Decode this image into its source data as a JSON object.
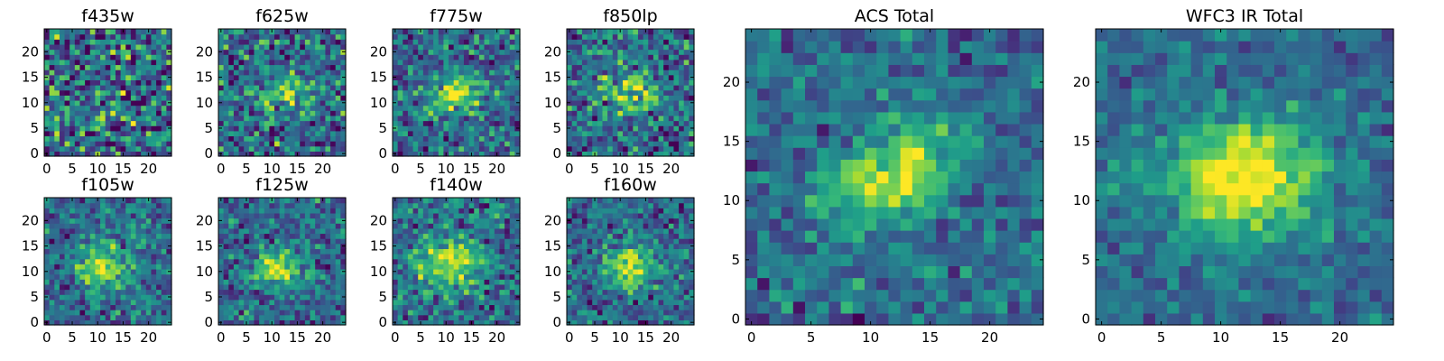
{
  "chart_data": [
    {
      "type": "heatmap",
      "title": "f435w",
      "colormap": "viridis",
      "grid": false,
      "xlim": [
        0,
        25
      ],
      "ylim": [
        0,
        25
      ],
      "x_ticks": [
        0,
        5,
        10,
        15,
        20
      ],
      "y_ticks": [
        0,
        5,
        10,
        15,
        20
      ],
      "values_summary": "pixel noise, no clear source"
    },
    {
      "type": "heatmap",
      "title": "f625w",
      "colormap": "viridis",
      "grid": false,
      "xlim": [
        0,
        25
      ],
      "ylim": [
        0,
        25
      ],
      "x_ticks": [
        0,
        5,
        10,
        15,
        20
      ],
      "y_ticks": [
        0,
        5,
        10,
        15,
        20
      ],
      "values_summary": "faint elongated source near center"
    },
    {
      "type": "heatmap",
      "title": "f775w",
      "colormap": "viridis",
      "grid": false,
      "xlim": [
        0,
        25
      ],
      "ylim": [
        0,
        25
      ],
      "x_ticks": [
        0,
        5,
        10,
        15,
        20
      ],
      "y_ticks": [
        0,
        5,
        10,
        15,
        20
      ],
      "values_summary": "source near center"
    },
    {
      "type": "heatmap",
      "title": "f850lp",
      "colormap": "viridis",
      "grid": false,
      "xlim": [
        0,
        25
      ],
      "ylim": [
        0,
        25
      ],
      "x_ticks": [
        0,
        5,
        10,
        15,
        20
      ],
      "y_ticks": [
        0,
        5,
        10,
        15,
        20
      ],
      "values_summary": "source near center"
    },
    {
      "type": "heatmap",
      "title": "f105w",
      "colormap": "viridis",
      "grid": false,
      "xlim": [
        0,
        25
      ],
      "ylim": [
        0,
        25
      ],
      "x_ticks": [
        0,
        5,
        10,
        15,
        20
      ],
      "y_ticks": [
        0,
        5,
        10,
        15,
        20
      ],
      "values_summary": "bright source near center"
    },
    {
      "type": "heatmap",
      "title": "f125w",
      "colormap": "viridis",
      "grid": false,
      "xlim": [
        0,
        25
      ],
      "ylim": [
        0,
        25
      ],
      "x_ticks": [
        0,
        5,
        10,
        15,
        20
      ],
      "y_ticks": [
        0,
        5,
        10,
        15,
        20
      ],
      "values_summary": "compact source near center"
    },
    {
      "type": "heatmap",
      "title": "f140w",
      "colormap": "viridis",
      "grid": false,
      "xlim": [
        0,
        25
      ],
      "ylim": [
        0,
        25
      ],
      "x_ticks": [
        0,
        5,
        10,
        15,
        20
      ],
      "y_ticks": [
        0,
        5,
        10,
        15,
        20
      ],
      "values_summary": "bright extended source near center"
    },
    {
      "type": "heatmap",
      "title": "f160w",
      "colormap": "viridis",
      "grid": false,
      "xlim": [
        0,
        25
      ],
      "ylim": [
        0,
        25
      ],
      "x_ticks": [
        0,
        5,
        10,
        15,
        20
      ],
      "y_ticks": [
        0,
        5,
        10,
        15,
        20
      ],
      "values_summary": "source near center"
    },
    {
      "type": "heatmap",
      "title": "ACS Total",
      "colormap": "viridis",
      "grid": false,
      "xlim": [
        0,
        25
      ],
      "ylim": [
        0,
        25
      ],
      "x_ticks": [
        0,
        5,
        10,
        15,
        20
      ],
      "y_ticks": [
        0,
        5,
        10,
        15,
        20
      ],
      "values_summary": "elongated source peaking near (12,12)"
    },
    {
      "type": "heatmap",
      "title": "WFC3 IR Total",
      "colormap": "viridis",
      "grid": false,
      "xlim": [
        0,
        25
      ],
      "ylim": [
        0,
        25
      ],
      "x_ticks": [
        0,
        5,
        10,
        15,
        20
      ],
      "y_ticks": [
        0,
        5,
        10,
        15,
        20
      ],
      "values_summary": "bright source peaking near (12,12)"
    }
  ]
}
